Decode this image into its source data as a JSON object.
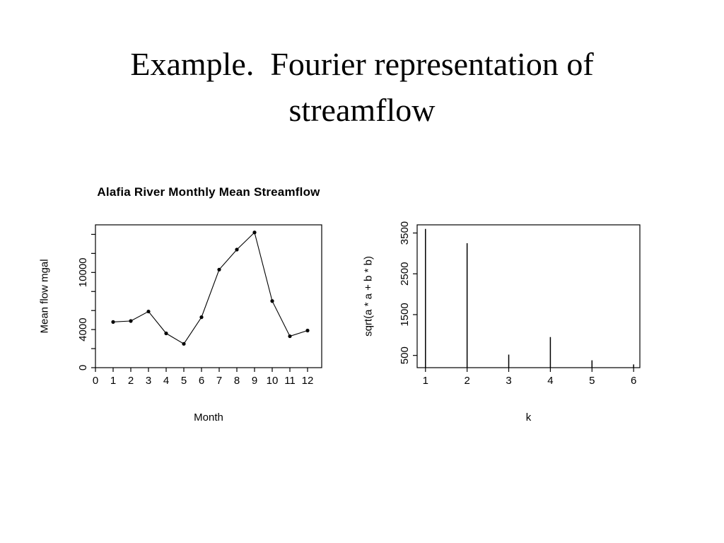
{
  "slide": {
    "title": "Example.  Fourier representation of\nstreamflow"
  },
  "chart_data": [
    {
      "type": "line",
      "title": "Alafia River Monthly Mean Streamflow",
      "xlabel": "Month",
      "ylabel": "Mean flow mgal",
      "x": [
        1,
        2,
        3,
        4,
        5,
        6,
        7,
        8,
        9,
        10,
        11,
        12
      ],
      "values": [
        4800,
        4900,
        5900,
        3600,
        2500,
        5300,
        10300,
        12400,
        14200,
        7000,
        3300,
        3900
      ],
      "xlim": [
        0,
        12.8
      ],
      "ylim": [
        0,
        15000
      ],
      "x_ticks": [
        0,
        1,
        2,
        3,
        4,
        5,
        6,
        7,
        8,
        9,
        10,
        11,
        12
      ],
      "y_ticks": [
        0,
        2000,
        4000,
        6000,
        8000,
        10000,
        12000,
        14000
      ],
      "y_tick_labels": [
        "0",
        "",
        "4000",
        "",
        "",
        "10000",
        "",
        ""
      ],
      "grid": false,
      "legend": "none",
      "marker": "point",
      "color": "#000000"
    },
    {
      "type": "bar",
      "title": "",
      "xlabel": "k",
      "ylabel": "sqrt(a * a + b * b)",
      "x": [
        1,
        2,
        3,
        4,
        5,
        6
      ],
      "values": [
        3600,
        3250,
        520,
        950,
        380,
        280
      ],
      "xlim": [
        0.8,
        6.15
      ],
      "ylim": [
        200,
        3700
      ],
      "x_ticks": [
        1,
        2,
        3,
        4,
        5,
        6
      ],
      "y_ticks": [
        500,
        1500,
        2500,
        3500
      ],
      "y_tick_labels": [
        "500",
        "1500",
        "2500",
        "3500"
      ],
      "grid": false,
      "legend": "none",
      "bar_style": "stem",
      "color": "#000000"
    }
  ]
}
